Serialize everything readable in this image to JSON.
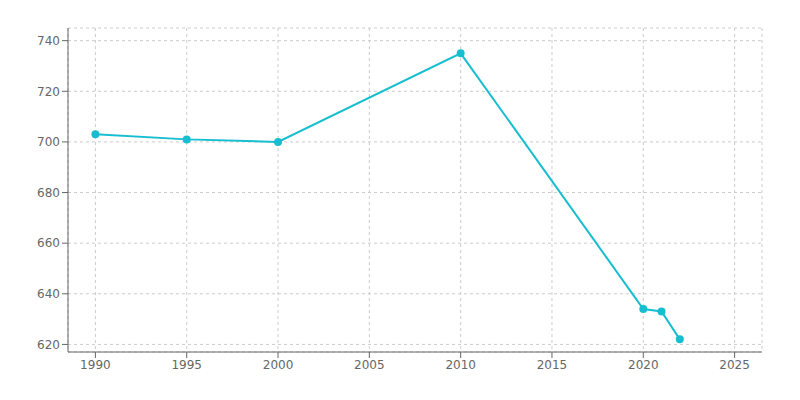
{
  "chart_data": {
    "type": "line",
    "x": [
      1990,
      1995,
      2000,
      2010,
      2020,
      2021,
      2022
    ],
    "values": [
      703,
      701,
      700,
      735,
      634,
      633,
      622
    ],
    "color": "#17BECF",
    "marker": "circle",
    "xlim": [
      1988.5,
      2026.5
    ],
    "ylim": [
      617,
      745
    ],
    "xticks": [
      1990,
      1995,
      2000,
      2005,
      2010,
      2015,
      2020,
      2025
    ],
    "yticks": [
      620,
      640,
      660,
      680,
      700,
      720,
      740
    ],
    "grid": true
  }
}
